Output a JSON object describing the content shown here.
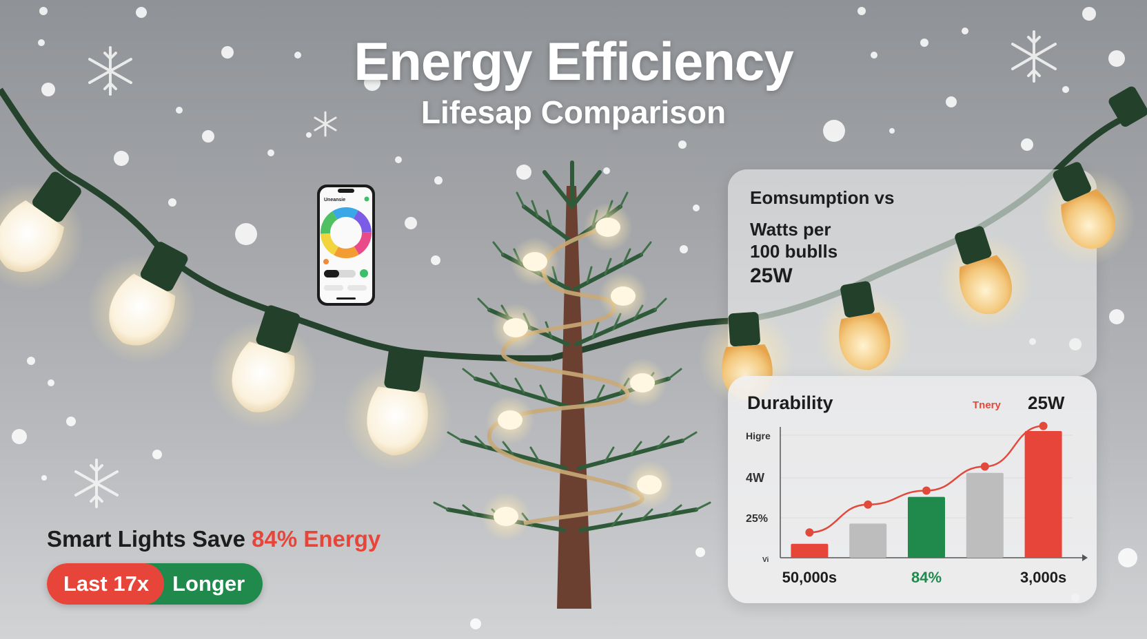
{
  "header": {
    "title": "Energy Efficiency",
    "subtitle": "Lifesap Comparison"
  },
  "consumption_card": {
    "heading": "Eomsumption vs",
    "line1": "Watts per",
    "line2": "100 bublls",
    "value": "25W"
  },
  "durability_card": {
    "title": "Durability",
    "legend_label": "Tnery",
    "legend_value": "25W"
  },
  "phone_app": {
    "app_label": "Uneansie"
  },
  "claim": {
    "prefix": "Smart Lights Save ",
    "highlight": "84% Energy"
  },
  "pill": {
    "left": "Last 17x",
    "right": "Longer"
  },
  "colors": {
    "accent_red": "#e8453a",
    "accent_green": "#1f8a4c",
    "bar_grey": "#bdbdbd",
    "trend_line": "#e1493b"
  },
  "chart_data": {
    "type": "bar",
    "title": "Durability",
    "y_tick_labels": [
      "Higre",
      "4W",
      "25%",
      "Vi"
    ],
    "x_tick_labels": [
      "50,000s",
      "84%",
      "3,000s"
    ],
    "x_tick_colors": [
      "#1d1d1d",
      "#1f8a4c",
      "#1d1d1d"
    ],
    "ylim": [
      0,
      100
    ],
    "grid": true,
    "legend": "top-right",
    "bars": [
      {
        "value": 11,
        "color": "red"
      },
      {
        "value": 27,
        "color": "grey"
      },
      {
        "value": 48,
        "color": "green"
      },
      {
        "value": 67,
        "color": "grey"
      },
      {
        "value": 100,
        "color": "red"
      }
    ],
    "series": [
      {
        "name": "Tnery",
        "type": "line",
        "values": [
          20,
          42,
          53,
          72,
          104
        ]
      }
    ]
  }
}
